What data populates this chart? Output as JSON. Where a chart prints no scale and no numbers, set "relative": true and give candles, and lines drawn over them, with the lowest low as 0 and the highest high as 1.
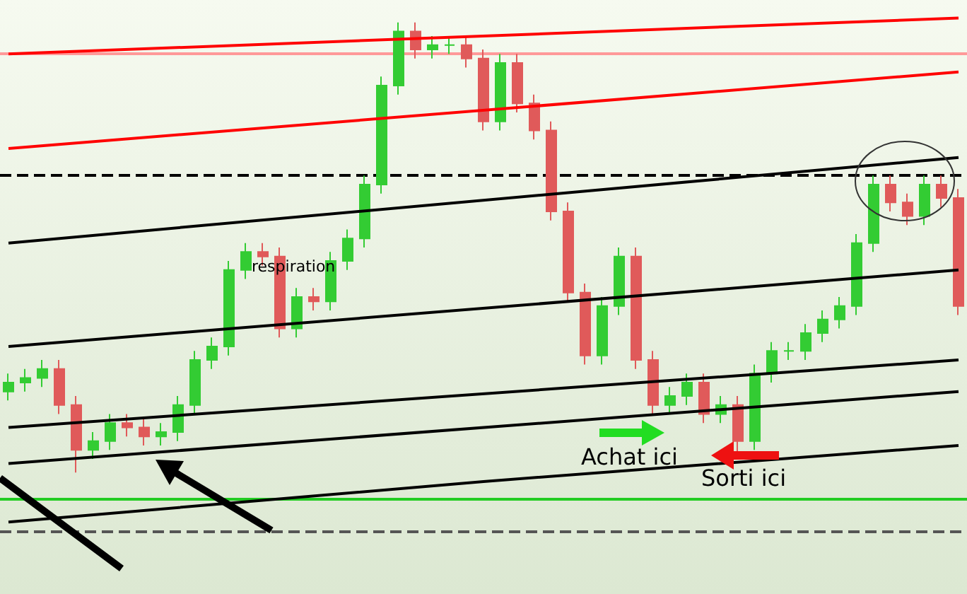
{
  "chart_data": {
    "type": "candlestick",
    "relative": true,
    "categories": [
      null,
      null,
      null,
      null,
      null,
      null,
      null,
      null,
      null,
      null,
      null,
      null,
      null,
      null,
      null,
      null,
      null,
      null,
      null,
      null,
      null,
      null,
      null,
      null,
      null,
      null,
      null,
      null,
      null,
      null,
      null,
      null,
      null,
      null,
      null,
      null,
      null,
      null,
      null,
      null,
      null,
      null,
      null,
      null,
      null,
      null,
      null,
      null,
      null,
      null,
      null,
      null,
      null,
      null,
      null,
      null,
      null
    ],
    "ohlc": [
      [
        0.18,
        0.22,
        0.16,
        0.2
      ],
      [
        0.2,
        0.23,
        0.18,
        0.21
      ],
      [
        0.21,
        0.25,
        0.19,
        0.23
      ],
      [
        0.23,
        0.25,
        0.13,
        0.15
      ],
      [
        0.15,
        0.17,
        0.0,
        0.05
      ],
      [
        0.05,
        0.09,
        0.03,
        0.07
      ],
      [
        0.07,
        0.13,
        0.05,
        0.11
      ],
      [
        0.11,
        0.13,
        0.08,
        0.1
      ],
      [
        0.1,
        0.12,
        0.06,
        0.08
      ],
      [
        0.08,
        0.11,
        0.06,
        0.09
      ],
      [
        0.09,
        0.17,
        0.07,
        0.15
      ],
      [
        0.15,
        0.27,
        0.13,
        0.25
      ],
      [
        0.25,
        0.3,
        0.23,
        0.28
      ],
      [
        0.28,
        0.47,
        0.26,
        0.45
      ],
      [
        0.45,
        0.51,
        0.43,
        0.49
      ],
      [
        0.49,
        0.51,
        0.46,
        0.48
      ],
      [
        0.48,
        0.5,
        0.3,
        0.32
      ],
      [
        0.32,
        0.41,
        0.3,
        0.39
      ],
      [
        0.39,
        0.41,
        0.36,
        0.38
      ],
      [
        0.38,
        0.49,
        0.36,
        0.47
      ],
      [
        0.47,
        0.54,
        0.45,
        0.52
      ],
      [
        0.52,
        0.66,
        0.5,
        0.64
      ],
      [
        0.64,
        0.88,
        0.62,
        0.86
      ],
      [
        0.86,
        1.0,
        0.84,
        0.98
      ],
      [
        0.98,
        1.0,
        0.92,
        0.94
      ],
      [
        0.94,
        0.97,
        0.92,
        0.95
      ],
      [
        0.95,
        0.97,
        0.93,
        0.95
      ],
      [
        0.95,
        0.97,
        0.9,
        0.92
      ],
      [
        0.92,
        0.94,
        0.76,
        0.78
      ],
      [
        0.78,
        0.93,
        0.76,
        0.91
      ],
      [
        0.91,
        0.93,
        0.8,
        0.82
      ],
      [
        0.82,
        0.84,
        0.74,
        0.76
      ],
      [
        0.76,
        0.78,
        0.56,
        0.58
      ],
      [
        0.58,
        0.6,
        0.38,
        0.4
      ],
      [
        0.4,
        0.42,
        0.24,
        0.26
      ],
      [
        0.26,
        0.39,
        0.24,
        0.37
      ],
      [
        0.37,
        0.5,
        0.35,
        0.48
      ],
      [
        0.48,
        0.5,
        0.23,
        0.25
      ],
      [
        0.25,
        0.27,
        0.13,
        0.15
      ],
      [
        0.15,
        0.19,
        0.13,
        0.17
      ],
      [
        0.17,
        0.22,
        0.15,
        0.2
      ],
      [
        0.2,
        0.22,
        0.11,
        0.13
      ],
      [
        0.13,
        0.17,
        0.11,
        0.15
      ],
      [
        0.15,
        0.17,
        0.04,
        0.07
      ],
      [
        0.07,
        0.24,
        0.05,
        0.22
      ],
      [
        0.22,
        0.29,
        0.2,
        0.27
      ],
      [
        0.27,
        0.29,
        0.25,
        0.27
      ],
      [
        0.27,
        0.33,
        0.25,
        0.31
      ],
      [
        0.31,
        0.36,
        0.29,
        0.34
      ],
      [
        0.34,
        0.39,
        0.32,
        0.37
      ],
      [
        0.37,
        0.53,
        0.35,
        0.51
      ],
      [
        0.51,
        0.66,
        0.49,
        0.64
      ],
      [
        0.64,
        0.66,
        0.58,
        0.6
      ],
      [
        0.6,
        0.62,
        0.55,
        0.57
      ],
      [
        0.57,
        0.66,
        0.55,
        0.64
      ],
      [
        0.64,
        0.66,
        0.59,
        0.61
      ],
      [
        0.61,
        0.63,
        0.35,
        0.37
      ]
    ],
    "series": [
      {
        "type": "line",
        "color": "#ff0000",
        "values": [
          0.93,
          null,
          null,
          null,
          null,
          null,
          null,
          null,
          null,
          null,
          null,
          null,
          null,
          null,
          null,
          null,
          null,
          null,
          null,
          null,
          null,
          null,
          null,
          null,
          null,
          null,
          null,
          null,
          null,
          null,
          null,
          null,
          null,
          null,
          null,
          null,
          null,
          null,
          null,
          null,
          null,
          null,
          null,
          null,
          null,
          null,
          null,
          null,
          null,
          null,
          null,
          null,
          null,
          null,
          null,
          null,
          1.01
        ]
      },
      {
        "type": "line",
        "color": "#ff0000",
        "values": [
          0.72,
          null,
          null,
          null,
          null,
          null,
          null,
          null,
          null,
          null,
          null,
          null,
          null,
          null,
          null,
          null,
          null,
          null,
          null,
          null,
          null,
          null,
          null,
          null,
          null,
          null,
          null,
          null,
          null,
          null,
          null,
          null,
          null,
          null,
          null,
          null,
          null,
          null,
          null,
          null,
          null,
          null,
          null,
          null,
          null,
          null,
          null,
          null,
          null,
          null,
          null,
          null,
          null,
          null,
          null,
          null,
          0.89
        ]
      },
      {
        "type": "line",
        "color": "#000000",
        "values": [
          0.51,
          null,
          null,
          null,
          null,
          null,
          null,
          null,
          null,
          null,
          null,
          null,
          null,
          null,
          null,
          null,
          null,
          null,
          null,
          null,
          null,
          null,
          null,
          null,
          null,
          null,
          null,
          null,
          null,
          null,
          null,
          null,
          null,
          null,
          null,
          null,
          null,
          null,
          null,
          null,
          null,
          null,
          null,
          null,
          null,
          null,
          null,
          null,
          null,
          null,
          null,
          null,
          null,
          null,
          null,
          null,
          0.7
        ]
      },
      {
        "type": "line",
        "color": "#000000",
        "values": [
          0.28,
          null,
          null,
          null,
          null,
          null,
          null,
          null,
          null,
          null,
          null,
          null,
          null,
          null,
          null,
          null,
          null,
          null,
          null,
          null,
          null,
          null,
          null,
          null,
          null,
          null,
          null,
          null,
          null,
          null,
          null,
          null,
          null,
          null,
          null,
          null,
          null,
          null,
          null,
          null,
          null,
          null,
          null,
          null,
          null,
          null,
          null,
          null,
          null,
          null,
          null,
          null,
          null,
          null,
          null,
          null,
          0.45
        ]
      },
      {
        "type": "line",
        "color": "#000000",
        "values": [
          0.1,
          null,
          null,
          null,
          null,
          null,
          null,
          null,
          null,
          null,
          null,
          null,
          null,
          null,
          null,
          null,
          null,
          null,
          null,
          null,
          null,
          null,
          null,
          null,
          null,
          null,
          null,
          null,
          null,
          null,
          null,
          null,
          null,
          null,
          null,
          null,
          null,
          null,
          null,
          null,
          null,
          null,
          null,
          null,
          null,
          null,
          null,
          null,
          null,
          null,
          null,
          null,
          null,
          null,
          null,
          null,
          0.25
        ]
      },
      {
        "type": "line",
        "color": "#000000",
        "values": [
          0.02,
          null,
          null,
          null,
          null,
          null,
          null,
          null,
          null,
          null,
          null,
          null,
          null,
          null,
          null,
          null,
          null,
          null,
          null,
          null,
          null,
          null,
          null,
          null,
          null,
          null,
          null,
          null,
          null,
          null,
          null,
          null,
          null,
          null,
          null,
          null,
          null,
          null,
          null,
          null,
          null,
          null,
          null,
          null,
          null,
          null,
          null,
          null,
          null,
          null,
          null,
          null,
          null,
          null,
          null,
          null,
          0.18
        ]
      },
      {
        "type": "line",
        "color": "#000000",
        "values": [
          -0.11,
          null,
          null,
          null,
          null,
          null,
          null,
          null,
          null,
          null,
          null,
          null,
          null,
          null,
          null,
          null,
          null,
          null,
          null,
          null,
          null,
          null,
          null,
          null,
          null,
          null,
          null,
          null,
          -0.02,
          null,
          null,
          null,
          null,
          null,
          null,
          null,
          null,
          null,
          null,
          null,
          null,
          null,
          null,
          null,
          null,
          null,
          null,
          null,
          null,
          null,
          null,
          null,
          null,
          null,
          null,
          null,
          0.06
        ]
      }
    ],
    "ref_lines": [
      {
        "axis": "y",
        "value": 0.66,
        "color": "#000000",
        "line_style": "dashed"
      },
      {
        "axis": "y",
        "value": -0.06,
        "color": "#22cc22",
        "line_style": "solid"
      },
      {
        "axis": "y",
        "value": -0.13,
        "color": "#555555",
        "line_style": "dashed"
      },
      {
        "axis": "y",
        "value": 0.93,
        "color": "#ff9999",
        "line_style": "solid"
      }
    ],
    "annotations": [
      "respiration",
      "Achat ici",
      "Sorti ici"
    ],
    "grid": false,
    "tick_labels": false
  }
}
